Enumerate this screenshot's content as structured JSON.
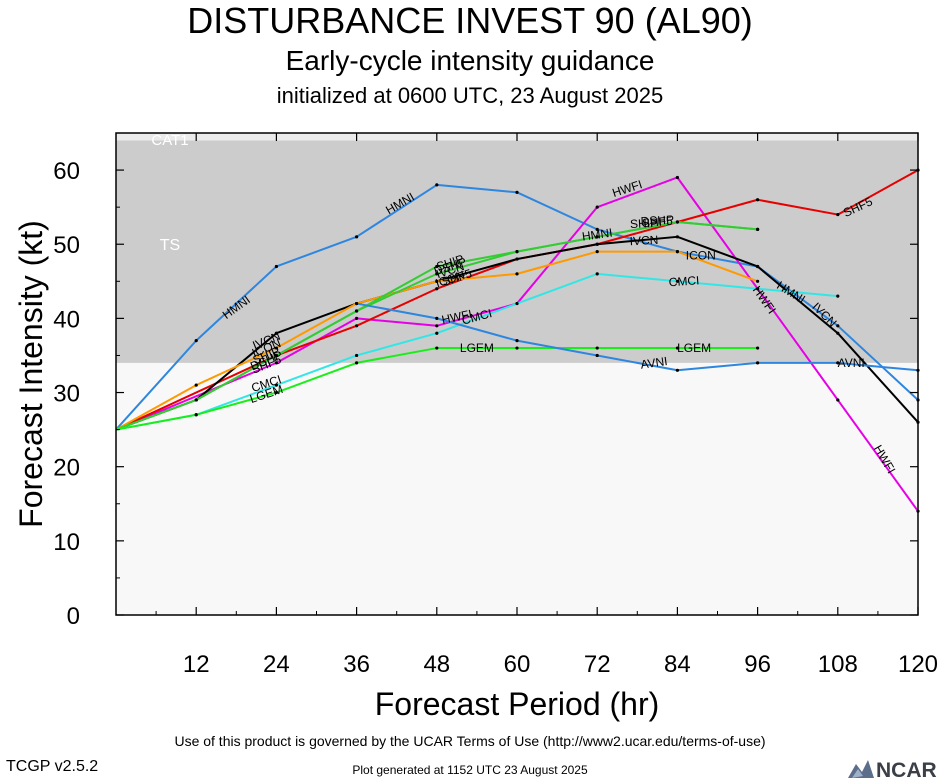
{
  "header": {
    "title": "DISTURBANCE INVEST 90 (AL90)",
    "subtitle": "Early-cycle intensity guidance",
    "initialized": "initialized at 0600 UTC, 23 August 2025"
  },
  "footer": {
    "terms": "Use of this product is governed by the UCAR Terms of Use (http://www2.ucar.edu/terms-of-use)",
    "generated": "Plot generated at 1152 UTC   23 August 2025",
    "version": "TCGP v2.5.2",
    "logo_text": "NCAR"
  },
  "chart_data": {
    "type": "line",
    "xlabel": "Forecast Period (hr)",
    "ylabel": "Forecast Intensity (kt)",
    "xlim": [
      0,
      120
    ],
    "ylim": [
      0,
      65
    ],
    "x_ticks": [
      "12",
      "24",
      "36",
      "48",
      "60",
      "72",
      "84",
      "96",
      "108",
      "120"
    ],
    "y_ticks": [
      "0",
      "10",
      "20",
      "30",
      "40",
      "50",
      "60"
    ],
    "bands": [
      {
        "label": "TS",
        "y0": 34,
        "y1": 64,
        "color": "#cccccc"
      },
      {
        "label": "CAT1",
        "y0": 64,
        "y1": 65,
        "color": "#ebebeb"
      }
    ],
    "below_band_color": "#f8f8f8",
    "series": [
      {
        "name": "HMNI",
        "color": "#2e86de",
        "x": [
          0,
          12,
          24,
          36,
          48,
          60,
          72,
          84,
          96,
          108,
          120
        ],
        "y": [
          25,
          37,
          47,
          51,
          58,
          57,
          52,
          49,
          47,
          39,
          29
        ]
      },
      {
        "name": "HWFI",
        "color": "#e600e6",
        "x": [
          0,
          24,
          36,
          48,
          60,
          72,
          84,
          108,
          120
        ],
        "y": [
          25,
          34,
          40,
          39,
          42,
          55,
          59,
          29,
          14
        ]
      },
      {
        "name": "SHF5",
        "color": "#e60000",
        "x": [
          0,
          24,
          36,
          48,
          60,
          72,
          84,
          96,
          108,
          120
        ],
        "y": [
          25,
          35,
          39,
          44,
          48,
          50,
          53,
          56,
          54,
          60
        ]
      },
      {
        "name": "IVCN",
        "color": "#000000",
        "x": [
          0,
          12,
          24,
          36,
          48,
          60,
          72,
          84,
          96,
          108,
          120
        ],
        "y": [
          25,
          29,
          38,
          42,
          45,
          48,
          50,
          51,
          47,
          38,
          26
        ]
      },
      {
        "name": "ICON",
        "color": "#ff9900",
        "x": [
          0,
          12,
          24,
          36,
          48,
          60,
          72,
          84,
          96
        ],
        "y": [
          25,
          31,
          36,
          42,
          45,
          46,
          49,
          49,
          45
        ]
      },
      {
        "name": "SHIP",
        "color": "#33cc33",
        "x": [
          0,
          12,
          24,
          36,
          48,
          60,
          72,
          84,
          96
        ],
        "y": [
          25,
          29,
          35,
          41,
          47,
          49,
          51,
          53,
          52
        ]
      },
      {
        "name": "DSHP",
        "color": "#33cc33",
        "x": [
          0,
          12,
          24,
          36,
          48,
          60,
          72,
          84,
          96
        ],
        "y": [
          25,
          29,
          35,
          41,
          46,
          49,
          51,
          53,
          52
        ]
      },
      {
        "name": "CMCI",
        "color": "#33e6e6",
        "x": [
          0,
          12,
          24,
          36,
          48,
          60,
          72,
          84,
          96,
          108
        ],
        "y": [
          25,
          27,
          31,
          35,
          38,
          42,
          46,
          45,
          44,
          43
        ]
      },
      {
        "name": "LGEM",
        "color": "#1aee1a",
        "x": [
          0,
          12,
          24,
          36,
          48,
          60,
          72,
          84,
          96
        ],
        "y": [
          25,
          27,
          30,
          34,
          36,
          36,
          36,
          36,
          36
        ]
      },
      {
        "name": "AVNI",
        "color": "#2e86de",
        "x": [
          36,
          48,
          60,
          72,
          84,
          96,
          108,
          120
        ],
        "y": [
          42,
          40,
          37,
          35,
          33,
          34,
          34,
          33
        ]
      }
    ],
    "labels": [
      {
        "text": "HMNI",
        "x": 18,
        "y": 41.5,
        "angle": -36
      },
      {
        "text": "HMNI",
        "x": 42.5,
        "y": 55.5,
        "angle": -30
      },
      {
        "text": "HMNI",
        "x": 72,
        "y": 51.3,
        "angle": -8
      },
      {
        "text": "HMNI",
        "x": 101,
        "y": 43.5,
        "angle": 32
      },
      {
        "text": "HWFI",
        "x": 76.5,
        "y": 57.5,
        "angle": -18
      },
      {
        "text": "HWFI",
        "x": 97,
        "y": 42.5,
        "angle": 55
      },
      {
        "text": "HWFI",
        "x": 115,
        "y": 21,
        "angle": 60
      },
      {
        "text": "HWFI",
        "x": 51,
        "y": 40.2,
        "angle": -12
      },
      {
        "text": "SHF5",
        "x": 111,
        "y": 55,
        "angle": -25
      },
      {
        "text": "SHF5",
        "x": 51,
        "y": 45.5,
        "angle": -18
      },
      {
        "text": "SHF5",
        "x": 22.5,
        "y": 33.8,
        "angle": -22
      },
      {
        "text": "SHF5",
        "x": 81,
        "y": 53,
        "angle": -5
      },
      {
        "text": "IVCN",
        "x": 22.5,
        "y": 37,
        "angle": -22
      },
      {
        "text": "IVCN",
        "x": 50,
        "y": 46.5,
        "angle": -18
      },
      {
        "text": "IVCN",
        "x": 79,
        "y": 50.5,
        "angle": -3
      },
      {
        "text": "IVCN",
        "x": 106,
        "y": 40.5,
        "angle": 45
      },
      {
        "text": "ICON",
        "x": 22.5,
        "y": 36,
        "angle": -22
      },
      {
        "text": "ICON",
        "x": 50,
        "y": 45.3,
        "angle": -18
      },
      {
        "text": "ICON",
        "x": 87.5,
        "y": 48.5,
        "angle": 0
      },
      {
        "text": "SHIP",
        "x": 50,
        "y": 47.5,
        "angle": -18
      },
      {
        "text": "SHIP",
        "x": 79,
        "y": 52.8,
        "angle": -3
      },
      {
        "text": "SHIP",
        "x": 22.5,
        "y": 35,
        "angle": -22
      },
      {
        "text": "DSHP",
        "x": 22.5,
        "y": 34.3,
        "angle": -22
      },
      {
        "text": "DSHP",
        "x": 50,
        "y": 47,
        "angle": -18
      },
      {
        "text": "DSHP",
        "x": 81,
        "y": 53.2,
        "angle": -3
      },
      {
        "text": "CMCI",
        "x": 22.5,
        "y": 31.2,
        "angle": -18
      },
      {
        "text": "CMCI",
        "x": 54,
        "y": 40.2,
        "angle": -15
      },
      {
        "text": "CMCI",
        "x": 85,
        "y": 45,
        "angle": -4
      },
      {
        "text": "LGEM",
        "x": 22.5,
        "y": 29.8,
        "angle": -18
      },
      {
        "text": "LGEM",
        "x": 54,
        "y": 36,
        "angle": 0
      },
      {
        "text": "LGEM",
        "x": 86.5,
        "y": 36,
        "angle": 0
      },
      {
        "text": "AVNI",
        "x": 80.5,
        "y": 34,
        "angle": -8
      },
      {
        "text": "AVNI",
        "x": 110,
        "y": 34,
        "angle": 0
      }
    ]
  }
}
